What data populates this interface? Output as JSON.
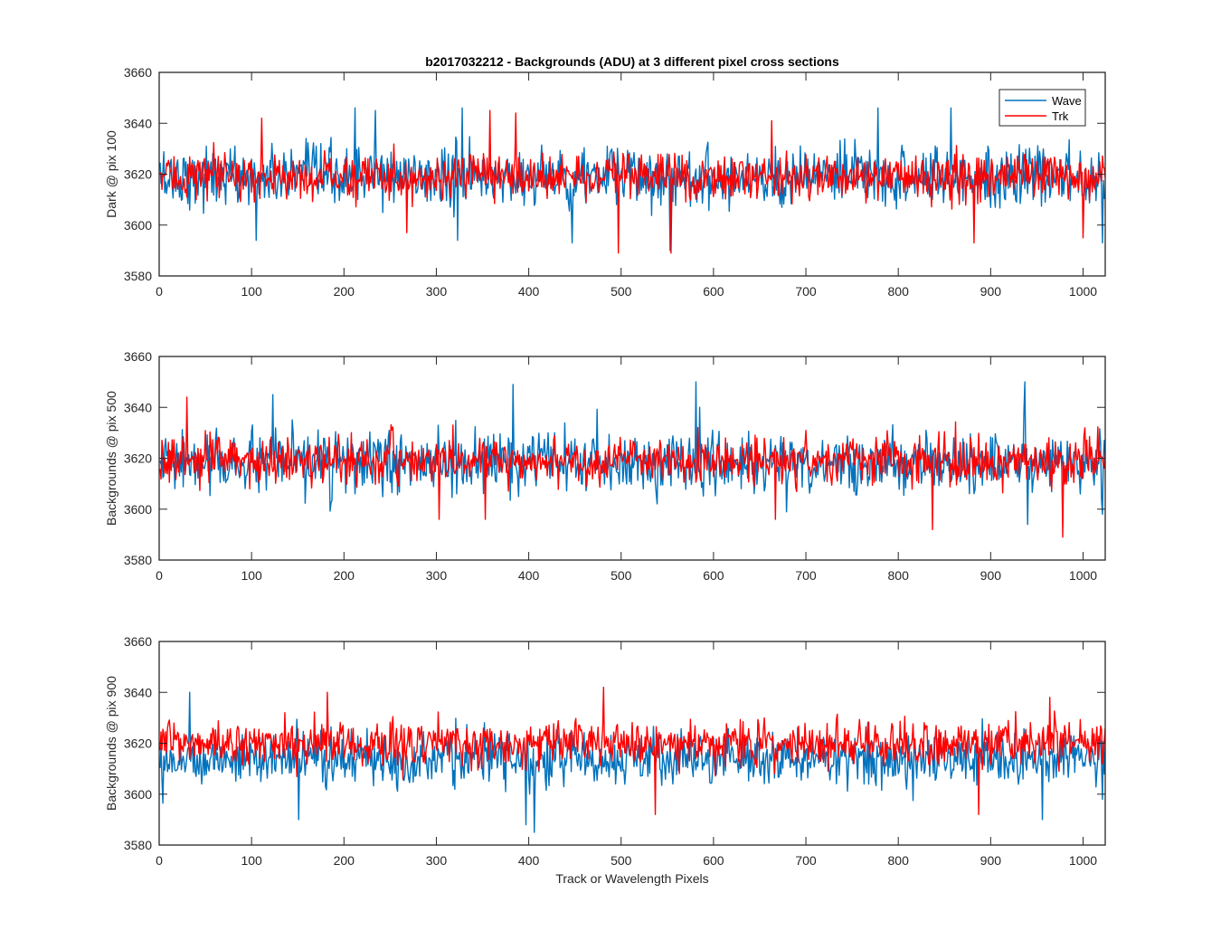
{
  "figure": {
    "title": "b2017032212 - Backgrounds (ADU) at 3 different pixel cross sections",
    "xlabel": "Track or Wavelength Pixels"
  },
  "legend": {
    "entries": [
      {
        "label": "Wave",
        "color": "#0072BD"
      },
      {
        "label": "Trk",
        "color": "#FF0000"
      }
    ],
    "placement": "top-right of first panel"
  },
  "chart_data": [
    {
      "type": "line",
      "title": "b2017032212 - Backgrounds (ADU) at 3 different pixel cross sections",
      "xlabel": "",
      "ylabel": "Dark @ pix 100",
      "xlim": [
        0,
        1024
      ],
      "ylim": [
        3580,
        3660
      ],
      "xticks": [
        0,
        100,
        200,
        300,
        400,
        500,
        600,
        700,
        800,
        900,
        1000
      ],
      "yticks": [
        3580,
        3600,
        3620,
        3640,
        3660
      ],
      "grid": false,
      "series": [
        {
          "name": "Wave",
          "color": "#0072BD",
          "x_range": [
            1,
            1024
          ],
          "mean": 3619,
          "spread": 8,
          "spikes": [
            [
              105,
              3594
            ],
            [
              212,
              3646
            ],
            [
              234,
              3645
            ],
            [
              323,
              3594
            ],
            [
              328,
              3646
            ],
            [
              447,
              3593
            ],
            [
              553,
              3590
            ],
            [
              778,
              3646
            ],
            [
              857,
              3646
            ],
            [
              1021,
              3593
            ]
          ]
        },
        {
          "name": "Trk",
          "color": "#FF0000",
          "x_range": [
            1,
            1024
          ],
          "mean": 3619,
          "spread": 6,
          "spikes": [
            [
              111,
              3642
            ],
            [
              268,
              3597
            ],
            [
              358,
              3645
            ],
            [
              386,
              3644
            ],
            [
              497,
              3589
            ],
            [
              554,
              3589
            ],
            [
              663,
              3641
            ],
            [
              882,
              3593
            ],
            [
              1000,
              3595
            ]
          ]
        }
      ]
    },
    {
      "type": "line",
      "title": "",
      "xlabel": "",
      "ylabel": "Backgrounds @ pix 500",
      "xlim": [
        0,
        1024
      ],
      "ylim": [
        3580,
        3660
      ],
      "xticks": [
        0,
        100,
        200,
        300,
        400,
        500,
        600,
        700,
        800,
        900,
        1000
      ],
      "yticks": [
        3580,
        3600,
        3620,
        3640,
        3660
      ],
      "grid": false,
      "series": [
        {
          "name": "Wave",
          "color": "#0072BD",
          "x_range": [
            1,
            1024
          ],
          "mean": 3618,
          "spread": 8,
          "spikes": [
            [
              123,
              3645
            ],
            [
              383,
              3649
            ],
            [
              581,
              3650
            ],
            [
              585,
              3640
            ],
            [
              937,
              3650
            ],
            [
              940,
              3594
            ],
            [
              1021,
              3598
            ]
          ]
        },
        {
          "name": "Trk",
          "color": "#FF0000",
          "x_range": [
            1,
            1024
          ],
          "mean": 3619,
          "spread": 6,
          "spikes": [
            [
              30,
              3644
            ],
            [
              303,
              3596
            ],
            [
              353,
              3596
            ],
            [
              667,
              3596
            ],
            [
              837,
              3592
            ],
            [
              978,
              3589
            ]
          ]
        }
      ]
    },
    {
      "type": "line",
      "title": "",
      "xlabel": "Track or Wavelength Pixels",
      "ylabel": "Backgrounds @ pix 900",
      "xlim": [
        0,
        1024
      ],
      "ylim": [
        3580,
        3660
      ],
      "xticks": [
        0,
        100,
        200,
        300,
        400,
        500,
        600,
        700,
        800,
        900,
        1000
      ],
      "yticks": [
        3580,
        3600,
        3620,
        3640,
        3660
      ],
      "grid": false,
      "series": [
        {
          "name": "Wave",
          "color": "#0072BD",
          "x_range": [
            1,
            1024
          ],
          "mean": 3614,
          "spread": 7,
          "spikes": [
            [
              33,
              3640
            ],
            [
              151,
              3590
            ],
            [
              397,
              3588
            ],
            [
              406,
              3585
            ],
            [
              956,
              3590
            ],
            [
              1021,
              3598
            ]
          ]
        },
        {
          "name": "Trk",
          "color": "#FF0000",
          "x_range": [
            1,
            1024
          ],
          "mean": 3620,
          "spread": 6,
          "spikes": [
            [
              182,
              3640
            ],
            [
              481,
              3642
            ],
            [
              537,
              3592
            ],
            [
              887,
              3592
            ],
            [
              964,
              3638
            ]
          ]
        }
      ]
    }
  ]
}
